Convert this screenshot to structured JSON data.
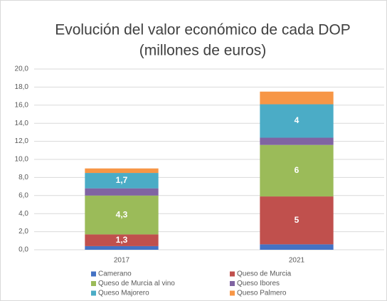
{
  "chart_data": {
    "type": "stacked_bar",
    "title": "Evolución del valor económico de cada DOP",
    "subtitle": "(millones de euros)",
    "categories": [
      "2017",
      "2021"
    ],
    "series": [
      {
        "name": "Camerano",
        "color": "#4472c4",
        "values": [
          0.4,
          0.6
        ],
        "value_labels": [
          null,
          null
        ]
      },
      {
        "name": "Queso de Murcia",
        "color": "#c0504d",
        "values": [
          1.3,
          5.3
        ],
        "value_labels": [
          "1,3",
          "5"
        ]
      },
      {
        "name": "Queso de Murcia al vino",
        "color": "#9bbb59",
        "values": [
          4.3,
          5.7
        ],
        "value_labels": [
          "4,3",
          "6"
        ]
      },
      {
        "name": "Queso Ibores",
        "color": "#8064a2",
        "values": [
          0.8,
          0.8
        ],
        "value_labels": [
          null,
          null
        ]
      },
      {
        "name": "Queso Majorero",
        "color": "#4bacc6",
        "values": [
          1.7,
          3.7
        ],
        "value_labels": [
          "1,7",
          "4"
        ]
      },
      {
        "name": "Queso Palmero",
        "color": "#f79646",
        "values": [
          0.5,
          1.4
        ],
        "value_labels": [
          null,
          null
        ]
      }
    ],
    "ylim": [
      0,
      20
    ],
    "yticks": [
      {
        "value": 0,
        "label": "0,0"
      },
      {
        "value": 2,
        "label": "2,0"
      },
      {
        "value": 4,
        "label": "4,0"
      },
      {
        "value": 6,
        "label": "6,0"
      },
      {
        "value": 8,
        "label": "8,0"
      },
      {
        "value": 10,
        "label": "10,0"
      },
      {
        "value": 12,
        "label": "12,0"
      },
      {
        "value": 14,
        "label": "14,0"
      },
      {
        "value": 16,
        "label": "16,0"
      },
      {
        "value": 18,
        "label": "18,0"
      },
      {
        "value": 20,
        "label": "20,0"
      }
    ],
    "grid": true,
    "legend": "bottom"
  }
}
